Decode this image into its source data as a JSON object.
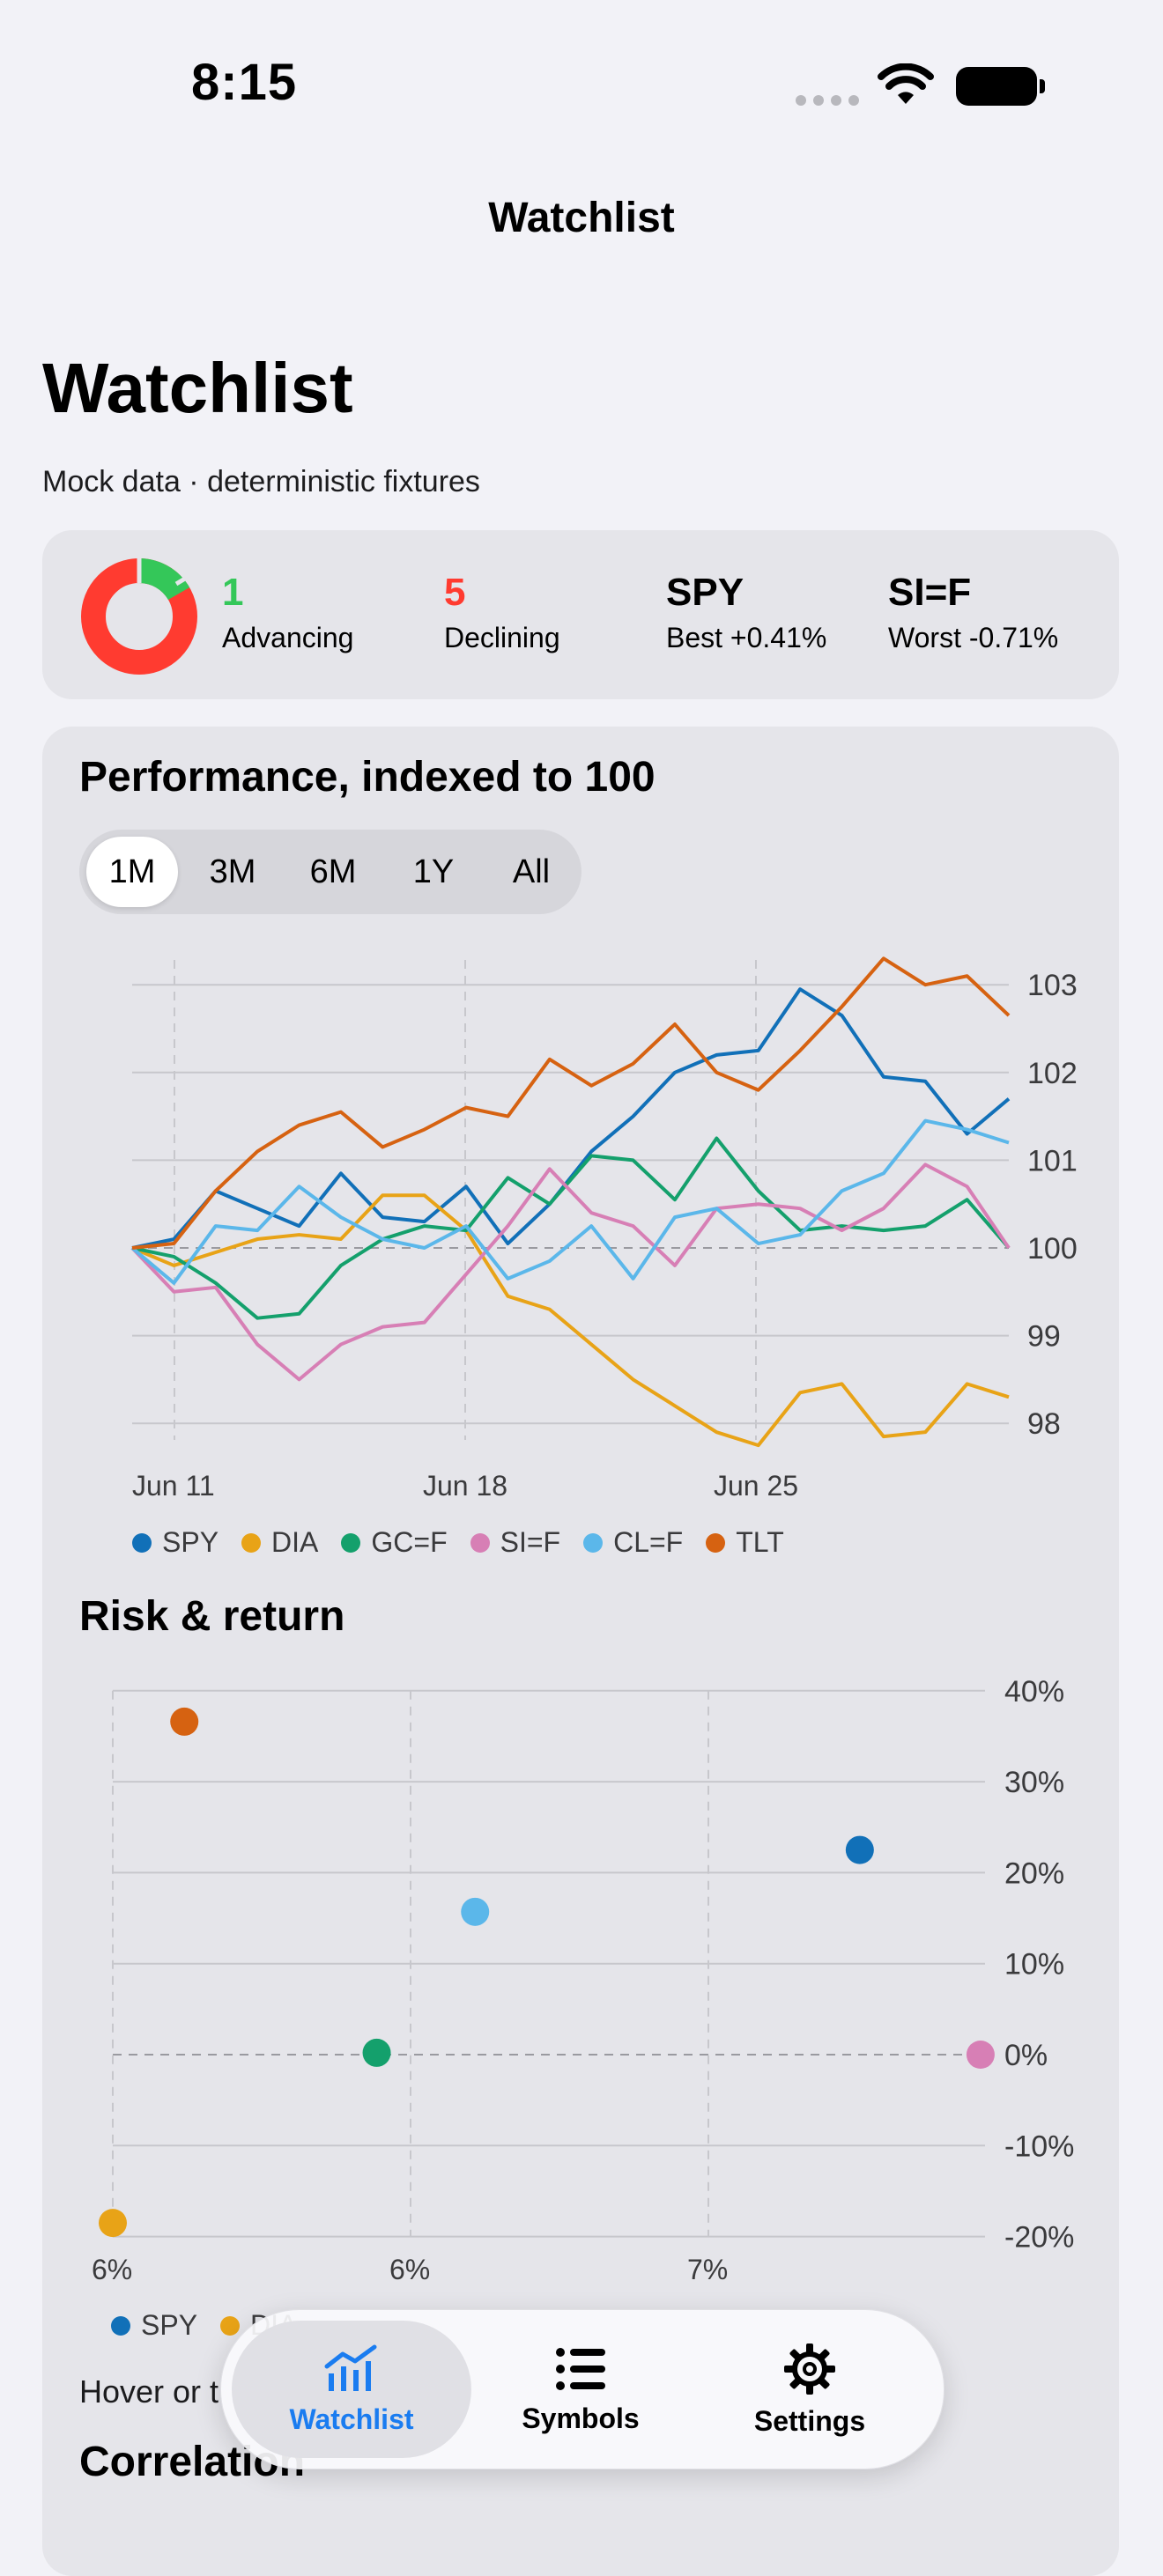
{
  "status": {
    "time": "8:15"
  },
  "nav": {
    "title": "Watchlist"
  },
  "header": {
    "title": "Watchlist",
    "subtitle": "Mock data · deterministic fixtures"
  },
  "summary": {
    "advancing_count": "1",
    "advancing_label": "Advancing",
    "declining_count": "5",
    "declining_label": "Declining",
    "best_symbol": "SPY",
    "best_label": "Best +0.41%",
    "worst_symbol": "SI=F",
    "worst_label": "Worst -0.71%",
    "colors": {
      "advancing": "#34c759",
      "declining": "#ff3b30"
    }
  },
  "performance": {
    "title": "Performance, indexed to 100",
    "ranges": [
      "1M",
      "3M",
      "6M",
      "1Y",
      "All"
    ],
    "selected_range": "1M"
  },
  "risk": {
    "title": "Risk & return"
  },
  "hover_hint": "Hover or t",
  "correlation_title": "Correlation",
  "tabs": [
    {
      "label": "Watchlist",
      "icon": "chart-icon",
      "active": true
    },
    {
      "label": "Symbols",
      "icon": "list-icon",
      "active": false
    },
    {
      "label": "Settings",
      "icon": "gear-icon",
      "active": false
    }
  ],
  "chart_data": [
    {
      "type": "line",
      "title": "Performance, indexed to 100",
      "x_ticks": [
        "Jun 11",
        "Jun 18",
        "Jun 25"
      ],
      "y_ticks": [
        98,
        99,
        100,
        101,
        102,
        103
      ],
      "ylim": [
        97.5,
        103.5
      ],
      "grid": true,
      "legend_position": "bottom",
      "series": [
        {
          "name": "SPY",
          "color": "#1170b8",
          "values": [
            100,
            100.1,
            100.65,
            100.45,
            100.25,
            100.85,
            100.35,
            100.3,
            100.7,
            100.05,
            100.5,
            101.1,
            101.5,
            102.0,
            102.2,
            102.25,
            102.95,
            102.65,
            101.95,
            101.9,
            101.3,
            101.7
          ]
        },
        {
          "name": "DIA",
          "color": "#e8a317",
          "values": [
            100,
            99.8,
            99.95,
            100.1,
            100.15,
            100.1,
            100.6,
            100.6,
            100.2,
            99.45,
            99.3,
            98.9,
            98.5,
            98.2,
            97.9,
            97.75,
            98.35,
            98.45,
            97.85,
            97.9,
            98.45,
            98.3
          ]
        },
        {
          "name": "GC=F",
          "color": "#14a06c",
          "values": [
            100,
            99.9,
            99.6,
            99.2,
            99.25,
            99.8,
            100.1,
            100.25,
            100.2,
            100.8,
            100.5,
            101.05,
            101.0,
            100.55,
            101.25,
            100.65,
            100.2,
            100.25,
            100.2,
            100.25,
            100.55,
            100.0
          ]
        },
        {
          "name": "SI=F",
          "color": "#d77fb5",
          "values": [
            100,
            99.5,
            99.55,
            98.9,
            98.5,
            98.9,
            99.1,
            99.15,
            99.7,
            100.25,
            100.9,
            100.4,
            100.25,
            99.8,
            100.45,
            100.5,
            100.45,
            100.2,
            100.45,
            100.95,
            100.7,
            100.0
          ]
        },
        {
          "name": "CL=F",
          "color": "#5bb7ea",
          "values": [
            100,
            99.6,
            100.25,
            100.2,
            100.7,
            100.35,
            100.1,
            100.0,
            100.25,
            99.65,
            99.85,
            100.25,
            99.65,
            100.35,
            100.45,
            100.05,
            100.15,
            100.65,
            100.85,
            101.45,
            101.35,
            101.2
          ]
        },
        {
          "name": "TLT",
          "color": "#d66211",
          "values": [
            100,
            100.05,
            100.65,
            101.1,
            101.4,
            101.55,
            101.15,
            101.35,
            101.6,
            101.5,
            102.15,
            101.85,
            102.1,
            102.55,
            102.0,
            101.8,
            102.25,
            102.75,
            103.3,
            103.0,
            103.1,
            102.65
          ]
        }
      ]
    },
    {
      "type": "scatter",
      "title": "Risk & return",
      "x_ticks": [
        "6%",
        "6%",
        "7%"
      ],
      "y_ticks": [
        "40%",
        "30%",
        "20%",
        "10%",
        "0%",
        "-10%",
        "-20%"
      ],
      "xlim": [
        5.5,
        7.45
      ],
      "ylim": [
        -20,
        40
      ],
      "grid": true,
      "points": [
        {
          "name": "SPY",
          "color": "#1170b8",
          "x": 7.17,
          "y": 22.5
        },
        {
          "name": "DIA",
          "color": "#e8a317",
          "x": 5.5,
          "y": -18.5
        },
        {
          "name": "GC=F",
          "color": "#14a06c",
          "x": 6.09,
          "y": 0.2
        },
        {
          "name": "SI=F",
          "color": "#d77fb5",
          "x": 7.44,
          "y": 0
        },
        {
          "name": "CL=F",
          "color": "#5bb7ea",
          "x": 6.31,
          "y": 15.7
        },
        {
          "name": "TLT",
          "color": "#d66211",
          "x": 5.66,
          "y": 36.6
        }
      ],
      "legend_visible": [
        "SPY",
        "DIA"
      ]
    }
  ]
}
